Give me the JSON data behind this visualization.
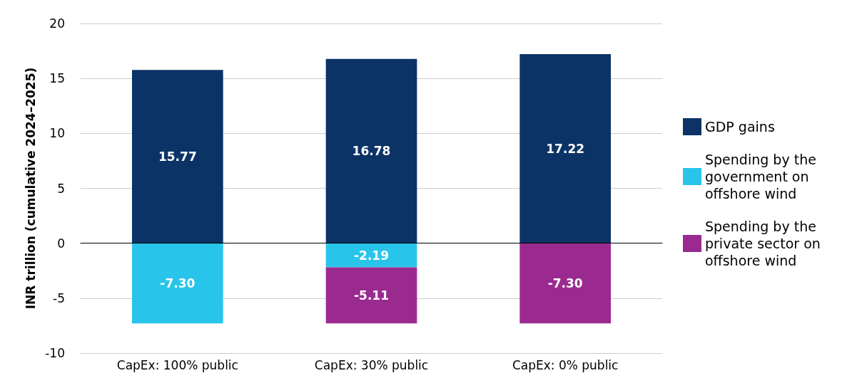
{
  "chart_data": {
    "type": "bar",
    "stacked": true,
    "ylabel": "INR trillion (cumulative 2024–2025)",
    "categories": [
      "CapEx: 100% public",
      "CapEx: 30% public",
      "CapEx: 0% public"
    ],
    "series": [
      {
        "name": "GDP gains",
        "color": "#0b3366",
        "values": [
          15.77,
          16.78,
          17.22
        ],
        "value_labels": [
          "15.77",
          "16.78",
          "17.22"
        ]
      },
      {
        "name": "Spending by the government on offshore wind",
        "color": "#29c4ea",
        "values": [
          -7.3,
          -2.19,
          null
        ],
        "value_labels": [
          "-7.30",
          "-2.19",
          null
        ]
      },
      {
        "name": "Spending by the private sector on offshore wind",
        "color": "#9b2a90",
        "values": [
          null,
          -5.11,
          -7.3
        ],
        "value_labels": [
          null,
          "-5.11",
          "-7.30"
        ]
      }
    ],
    "ylim": [
      -10,
      20
    ],
    "yticks": [
      -10,
      -5,
      0,
      5,
      10,
      15,
      20
    ],
    "grid": "y",
    "legend": "right"
  }
}
